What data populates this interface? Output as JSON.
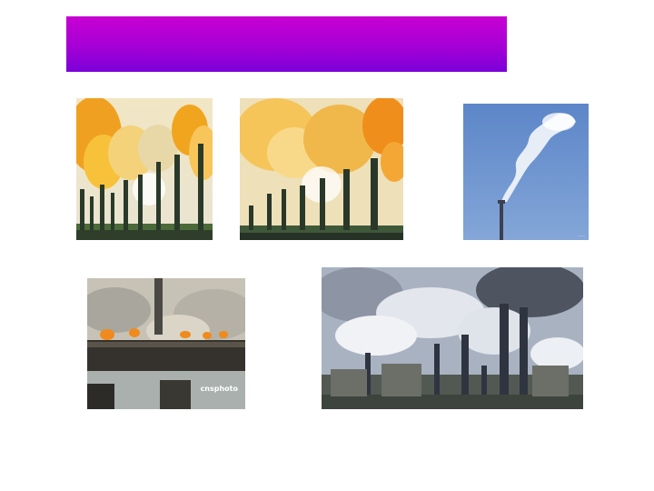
{
  "slide": {
    "title": "",
    "title_bar_gradient": [
      "#c800d2",
      "#7a00d8"
    ]
  },
  "photos": [
    {
      "subject": "yellow-smoke-smokestacks-photo"
    },
    {
      "subject": "yellow-smoke-smokestacks-closeup-photo"
    },
    {
      "subject": "single-chimney-white-smoke-photo"
    },
    {
      "subject": "riverside-steel-plant-fires-photo",
      "watermark": "cnsphoto"
    },
    {
      "subject": "industrial-plant-smoking-chimneys-photo"
    }
  ]
}
